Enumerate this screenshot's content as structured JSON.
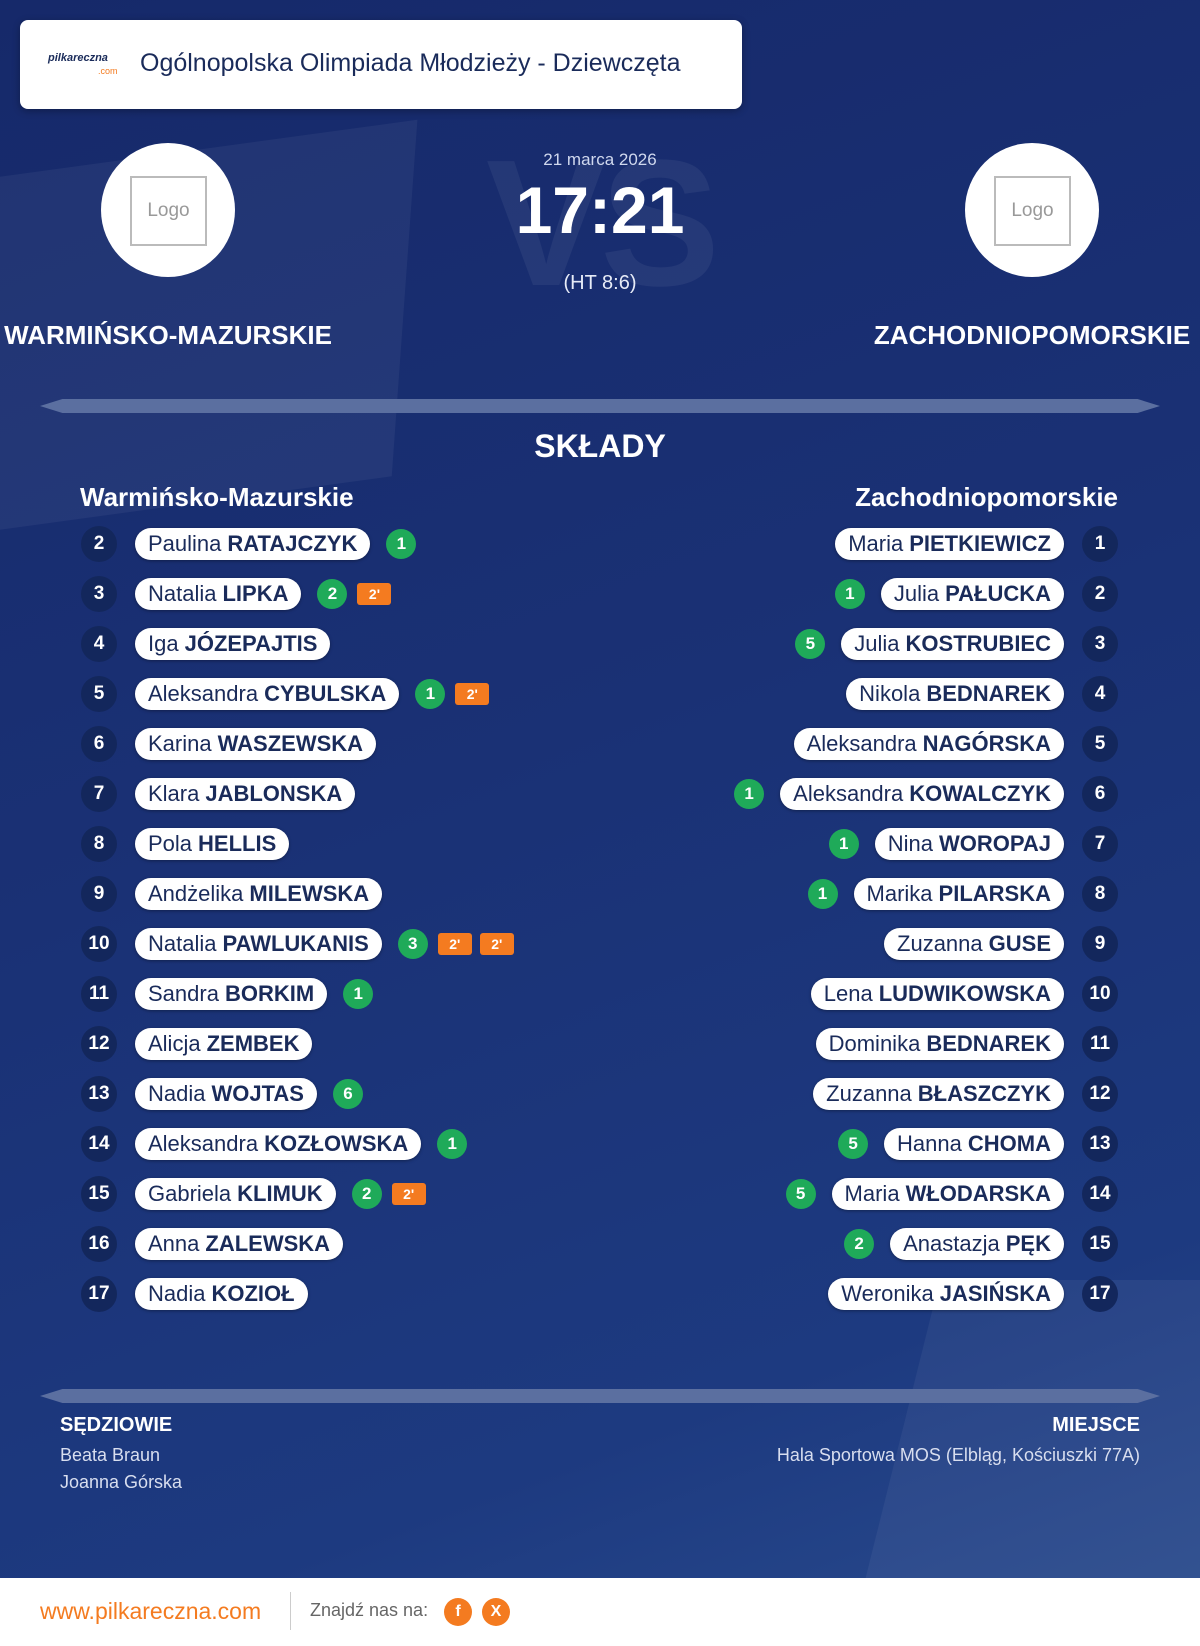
{
  "header": {
    "brand": "pilkareczna",
    "brand_sub": ".com",
    "title": "Ogólnopolska Olimpiada Młodzieży - Dziewczęta"
  },
  "match": {
    "date": "21 marca 2026",
    "score": "17:21",
    "halftime": "(HT 8:6)",
    "watermark": "VS"
  },
  "home": {
    "name": "WARMIŃSKO-MAZURSKIE",
    "logo": "Logo"
  },
  "away": {
    "name": "ZACHODNIOPOMORSKIE",
    "logo": "Logo"
  },
  "lineups": {
    "title": "SKŁADY",
    "home": {
      "team": "Warmińsko-Mazurskie",
      "players": [
        {
          "number": 2,
          "first": "Paulina",
          "last": "RATAJCZYK",
          "goals": 1
        },
        {
          "number": 3,
          "first": "Natalia",
          "last": "LIPKA",
          "goals": 2,
          "penalties": [
            "2'"
          ]
        },
        {
          "number": 4,
          "first": "Iga",
          "last": "JÓZEPAJTIS"
        },
        {
          "number": 5,
          "first": "Aleksandra",
          "last": "CYBULSKA",
          "goals": 1,
          "penalties": [
            "2'"
          ]
        },
        {
          "number": 6,
          "first": "Karina",
          "last": "WASZEWSKA"
        },
        {
          "number": 7,
          "first": "Klara",
          "last": "JABLONSKA"
        },
        {
          "number": 8,
          "first": "Pola",
          "last": "HELLIS"
        },
        {
          "number": 9,
          "first": "Andżelika",
          "last": "MILEWSKA"
        },
        {
          "number": 10,
          "first": "Natalia",
          "last": "PAWLUKANIS",
          "goals": 3,
          "penalties": [
            "2'",
            "2'"
          ]
        },
        {
          "number": 11,
          "first": "Sandra",
          "last": "BORKIM",
          "goals": 1
        },
        {
          "number": 12,
          "first": "Alicja",
          "last": "ZEMBEK"
        },
        {
          "number": 13,
          "first": "Nadia",
          "last": "WOJTAS",
          "goals": 6
        },
        {
          "number": 14,
          "first": "Aleksandra",
          "last": "KOZŁOWSKA",
          "goals": 1
        },
        {
          "number": 15,
          "first": "Gabriela",
          "last": "KLIMUK",
          "goals": 2,
          "penalties": [
            "2'"
          ]
        },
        {
          "number": 16,
          "first": "Anna",
          "last": "ZALEWSKA"
        },
        {
          "number": 17,
          "first": "Nadia",
          "last": "KOZIOŁ"
        }
      ]
    },
    "away": {
      "team": "Zachodniopomorskie",
      "players": [
        {
          "number": 1,
          "first": "Maria",
          "last": "PIETKIEWICZ"
        },
        {
          "number": 2,
          "first": "Julia",
          "last": "PAŁUCKA",
          "goals": 1
        },
        {
          "number": 3,
          "first": "Julia",
          "last": "KOSTRUBIEC",
          "goals": 5
        },
        {
          "number": 4,
          "first": "Nikola",
          "last": "BEDNAREK"
        },
        {
          "number": 5,
          "first": "Aleksandra",
          "last": "NAGÓRSKA"
        },
        {
          "number": 6,
          "first": "Aleksandra",
          "last": "KOWALCZYK",
          "goals": 1
        },
        {
          "number": 7,
          "first": "Nina",
          "last": "WOROPAJ",
          "goals": 1
        },
        {
          "number": 8,
          "first": "Marika",
          "last": "PILARSKA",
          "goals": 1
        },
        {
          "number": 9,
          "first": "Zuzanna",
          "last": "GUSE"
        },
        {
          "number": 10,
          "first": "Lena",
          "last": "LUDWIKOWSKA"
        },
        {
          "number": 11,
          "first": "Dominika",
          "last": "BEDNAREK"
        },
        {
          "number": 12,
          "first": "Zuzanna",
          "last": "BŁASZCZYK"
        },
        {
          "number": 13,
          "first": "Hanna",
          "last": "CHOMA",
          "goals": 5
        },
        {
          "number": 14,
          "first": "Maria",
          "last": "WŁODARSKA",
          "goals": 5
        },
        {
          "number": 15,
          "first": "Anastazja",
          "last": "PĘK",
          "goals": 2
        },
        {
          "number": 17,
          "first": "Weronika",
          "last": "JASIŃSKA"
        }
      ]
    }
  },
  "officials": {
    "title": "SĘDZIOWIE",
    "names": [
      "Beata Braun",
      "Joanna Górska"
    ]
  },
  "venue": {
    "title": "MIEJSCE",
    "name": "Hala Sportowa MOS (Elbląg, Kościuszki 77A)"
  },
  "footer": {
    "website": "www.pilkareczna.com",
    "follow": "Znajdź nas na:",
    "socials": [
      "f",
      "X"
    ]
  }
}
